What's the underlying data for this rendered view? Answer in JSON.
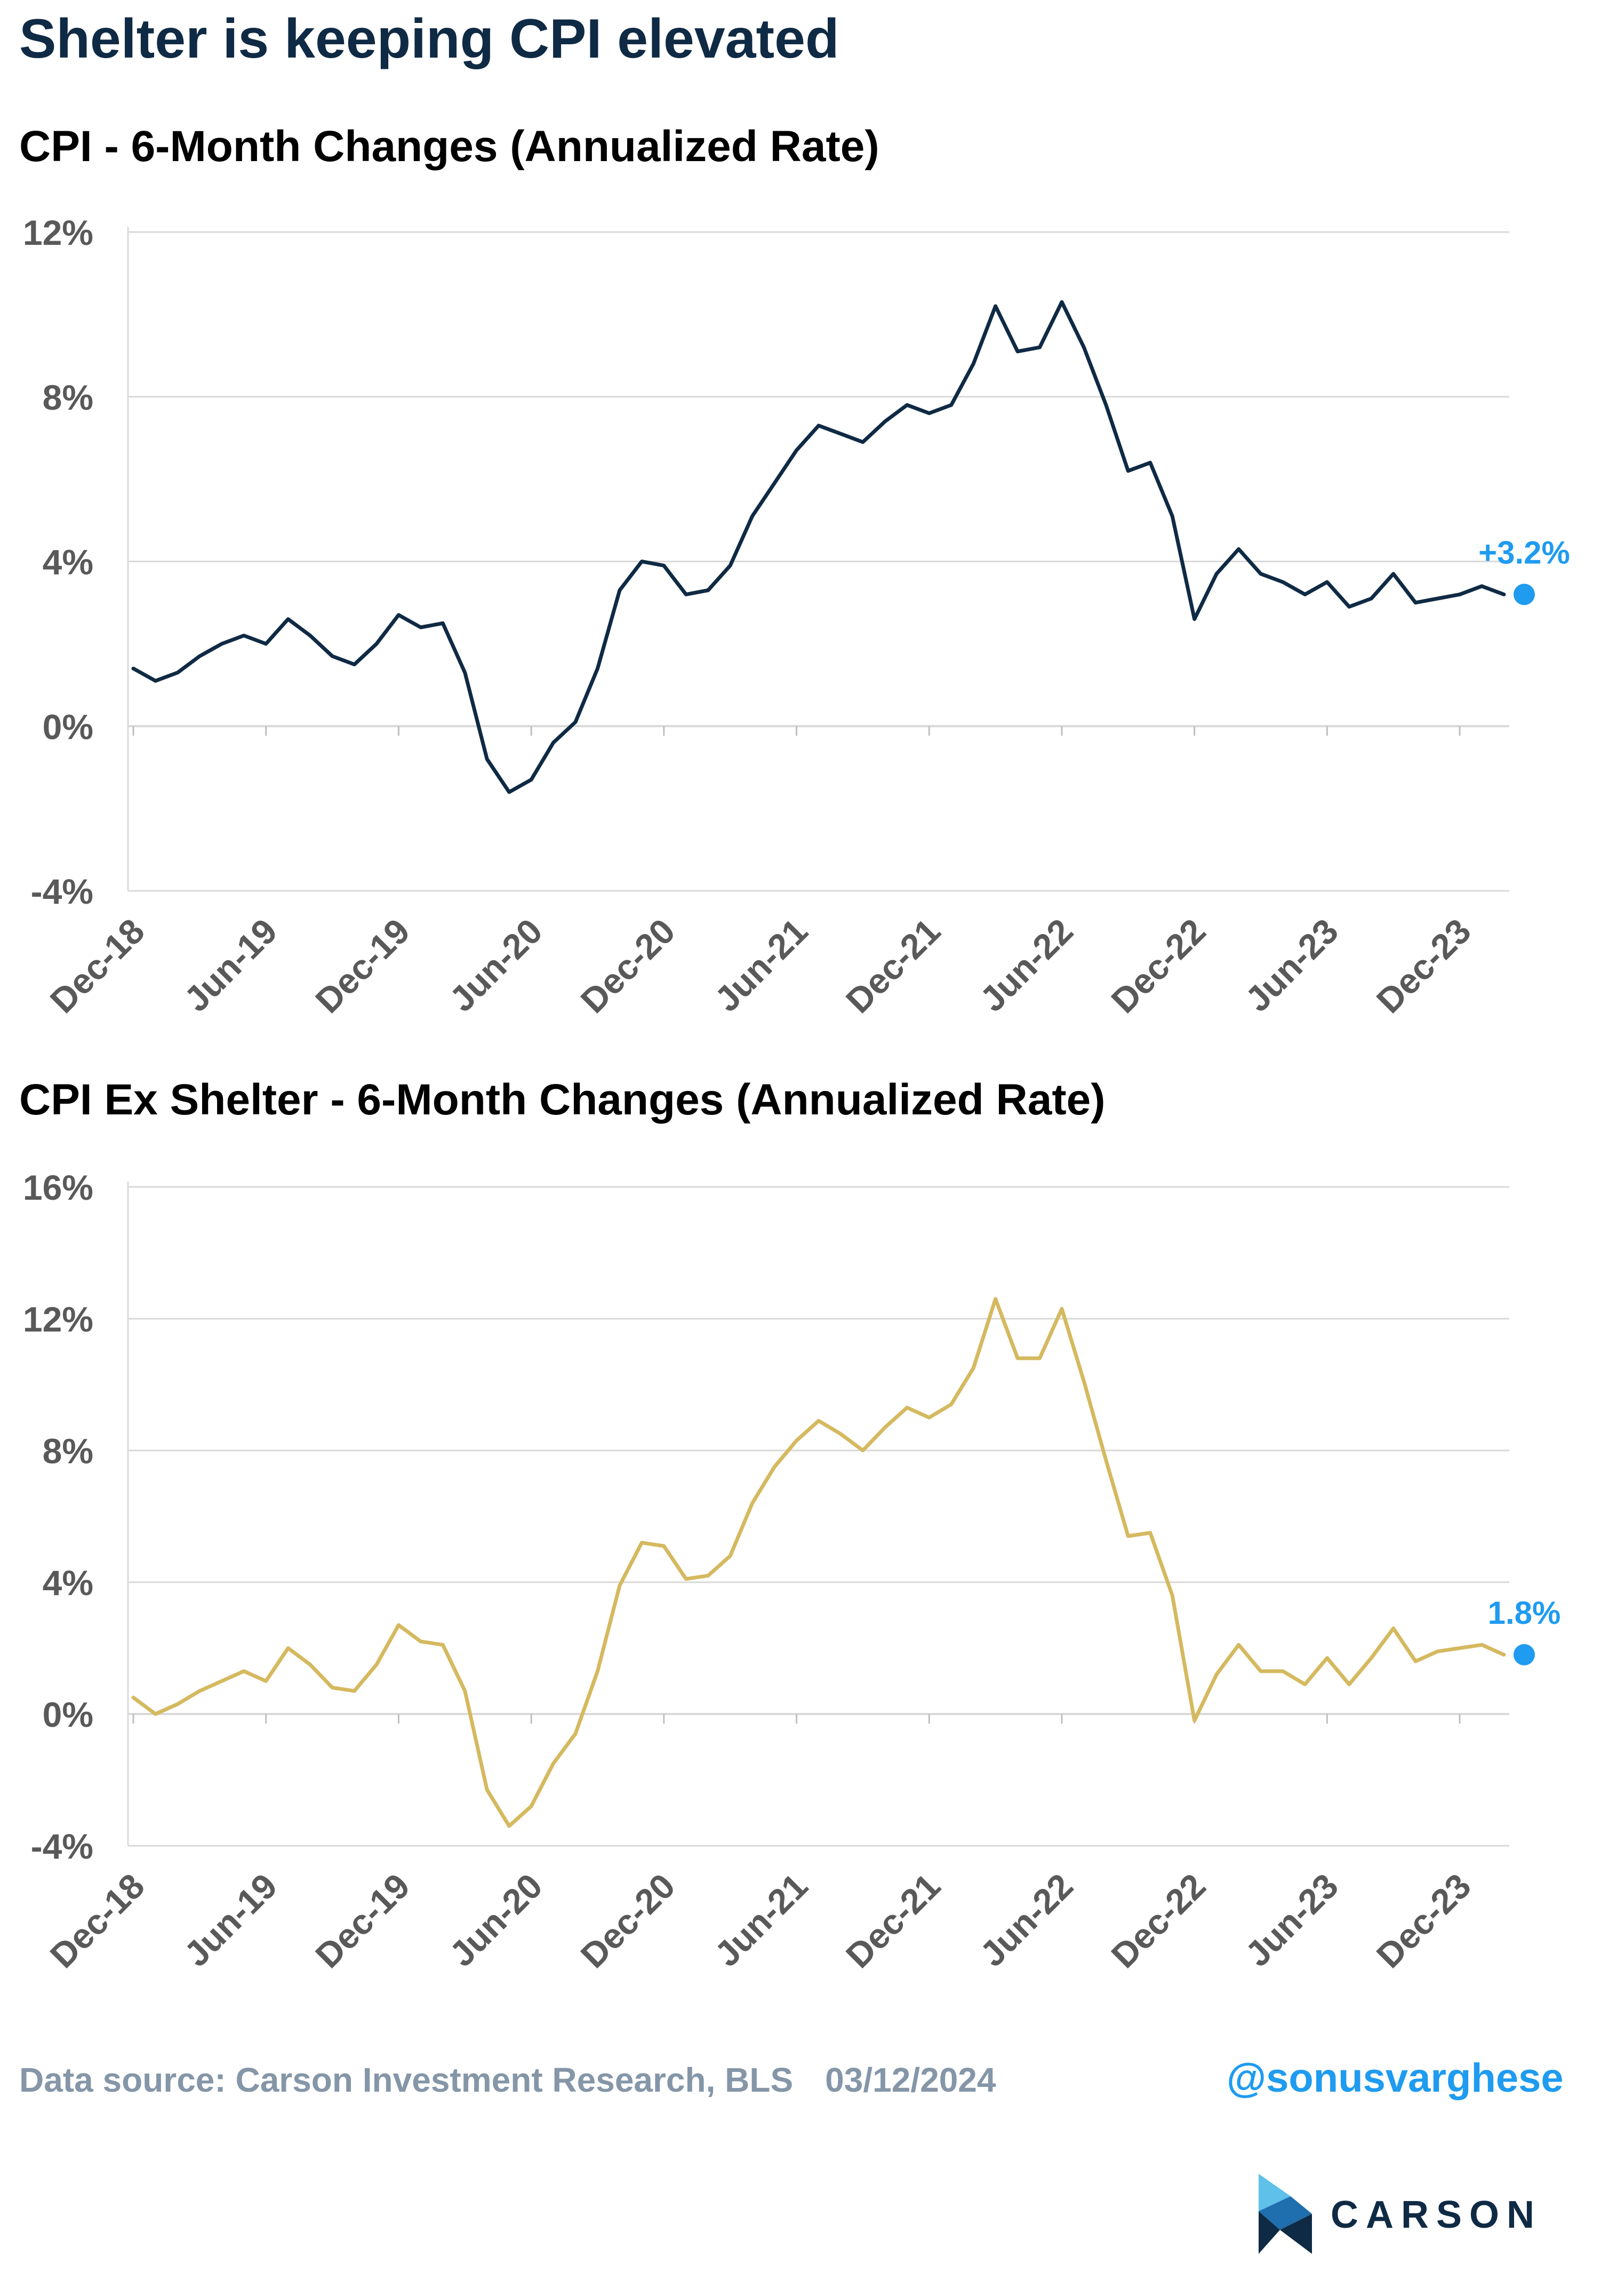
{
  "headline": "Shelter is keeping CPI elevated",
  "charts_meta": {
    "line_width": 7
  },
  "chart_data": [
    {
      "type": "line",
      "title": "CPI - 6-Month Changes (Annualized Rate)",
      "xlabel": "",
      "ylabel": "",
      "ylim": [
        -4,
        12
      ],
      "y_ticks": [
        12,
        8,
        4,
        0,
        -4
      ],
      "y_tick_labels": [
        "12%",
        "8%",
        "4%",
        "0%",
        "-4%"
      ],
      "x_tick_labels": [
        "Dec-18",
        "Jun-19",
        "Dec-19",
        "Jun-20",
        "Dec-20",
        "Jun-21",
        "Dec-21",
        "Jun-22",
        "Dec-22",
        "Jun-23",
        "Dec-23"
      ],
      "x_tick_index": [
        0,
        6,
        12,
        18,
        24,
        30,
        36,
        42,
        48,
        54,
        60
      ],
      "grid": true,
      "color": "#0f2a44",
      "end_label": "+3.2%",
      "end_color": "#1f9bf0",
      "series": [
        {
          "values": [
            1.4,
            1.1,
            1.3,
            1.7,
            2.0,
            2.2,
            2.0,
            2.6,
            2.2,
            1.7,
            1.5,
            2.0,
            2.7,
            2.4,
            2.5,
            1.3,
            -0.8,
            -1.6,
            -1.3,
            -0.4,
            0.1,
            1.4,
            3.3,
            4.0,
            3.9,
            3.2,
            3.3,
            3.9,
            5.1,
            5.9,
            6.7,
            7.3,
            7.1,
            6.9,
            7.4,
            7.8,
            7.6,
            7.8,
            8.8,
            10.2,
            9.1,
            9.2,
            10.3,
            9.2,
            7.8,
            6.2,
            6.4,
            5.1,
            2.6,
            3.7,
            4.3,
            3.7,
            3.5,
            3.2,
            3.5,
            2.9,
            3.1,
            3.7,
            3.0,
            3.1,
            3.2,
            3.4,
            3.2
          ]
        }
      ]
    },
    {
      "type": "line",
      "title": "CPI Ex Shelter - 6-Month Changes (Annualized Rate)",
      "xlabel": "",
      "ylabel": "",
      "ylim": [
        -4,
        16
      ],
      "y_ticks": [
        16,
        12,
        8,
        4,
        0,
        -4
      ],
      "y_tick_labels": [
        "16%",
        "12%",
        "8%",
        "4%",
        "0%",
        "-4%"
      ],
      "x_tick_labels": [
        "Dec-18",
        "Jun-19",
        "Dec-19",
        "Jun-20",
        "Dec-20",
        "Jun-21",
        "Dec-21",
        "Jun-22",
        "Dec-22",
        "Jun-23",
        "Dec-23"
      ],
      "x_tick_index": [
        0,
        6,
        12,
        18,
        24,
        30,
        36,
        42,
        48,
        54,
        60
      ],
      "grid": true,
      "color": "#d5b95f",
      "end_label": "1.8%",
      "end_color": "#1f9bf0",
      "series": [
        {
          "values": [
            0.5,
            0.0,
            0.3,
            0.7,
            1.0,
            1.3,
            1.0,
            2.0,
            1.5,
            0.8,
            0.7,
            1.5,
            2.7,
            2.2,
            2.1,
            0.7,
            -2.3,
            -3.4,
            -2.8,
            -1.5,
            -0.6,
            1.3,
            3.9,
            5.2,
            5.1,
            4.1,
            4.2,
            4.8,
            6.4,
            7.5,
            8.3,
            8.9,
            8.5,
            8.0,
            8.7,
            9.3,
            9.0,
            9.4,
            10.5,
            12.6,
            10.8,
            10.8,
            12.3,
            10.1,
            7.7,
            5.4,
            5.5,
            3.6,
            -0.2,
            1.2,
            2.1,
            1.3,
            1.3,
            0.9,
            1.7,
            0.9,
            1.7,
            2.6,
            1.6,
            1.9,
            2.0,
            2.1,
            1.8
          ]
        }
      ]
    }
  ],
  "footer": {
    "source": "Data source: Carson Investment Research, BLS",
    "date": "03/12/2024",
    "handle": "@sonusvarghese"
  },
  "brand": {
    "name": "CARSON"
  }
}
